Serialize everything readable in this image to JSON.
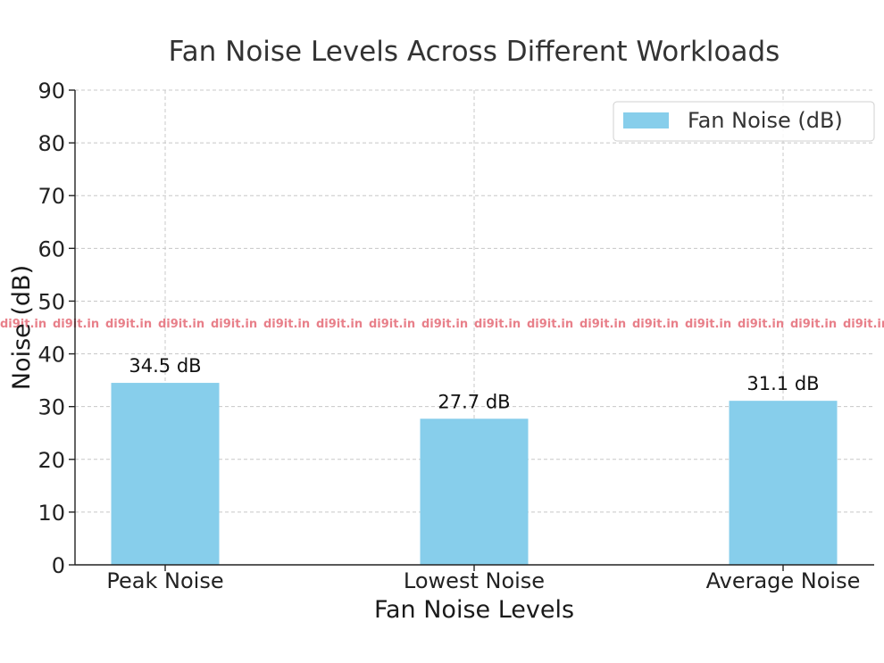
{
  "chart_data": {
    "type": "bar",
    "title": "Fan Noise Levels Across Different Workloads",
    "xlabel": "Fan Noise Levels",
    "ylabel": "Noise (dB)",
    "categories": [
      "Peak Noise",
      "Lowest Noise",
      "Average Noise"
    ],
    "series": [
      {
        "name": "Fan Noise (dB)",
        "values": [
          34.5,
          27.7,
          31.1
        ],
        "labels": [
          "34.5 dB",
          "27.7 dB",
          "31.1 dB"
        ],
        "color": "#87ceeb"
      }
    ],
    "ylim": [
      0,
      90
    ],
    "yticks": [
      "0",
      "10",
      "20",
      "30",
      "40",
      "50",
      "60",
      "70",
      "80",
      "90"
    ],
    "grid": true,
    "legend_position": "top-right"
  },
  "watermark": {
    "text": "di9it.in"
  }
}
